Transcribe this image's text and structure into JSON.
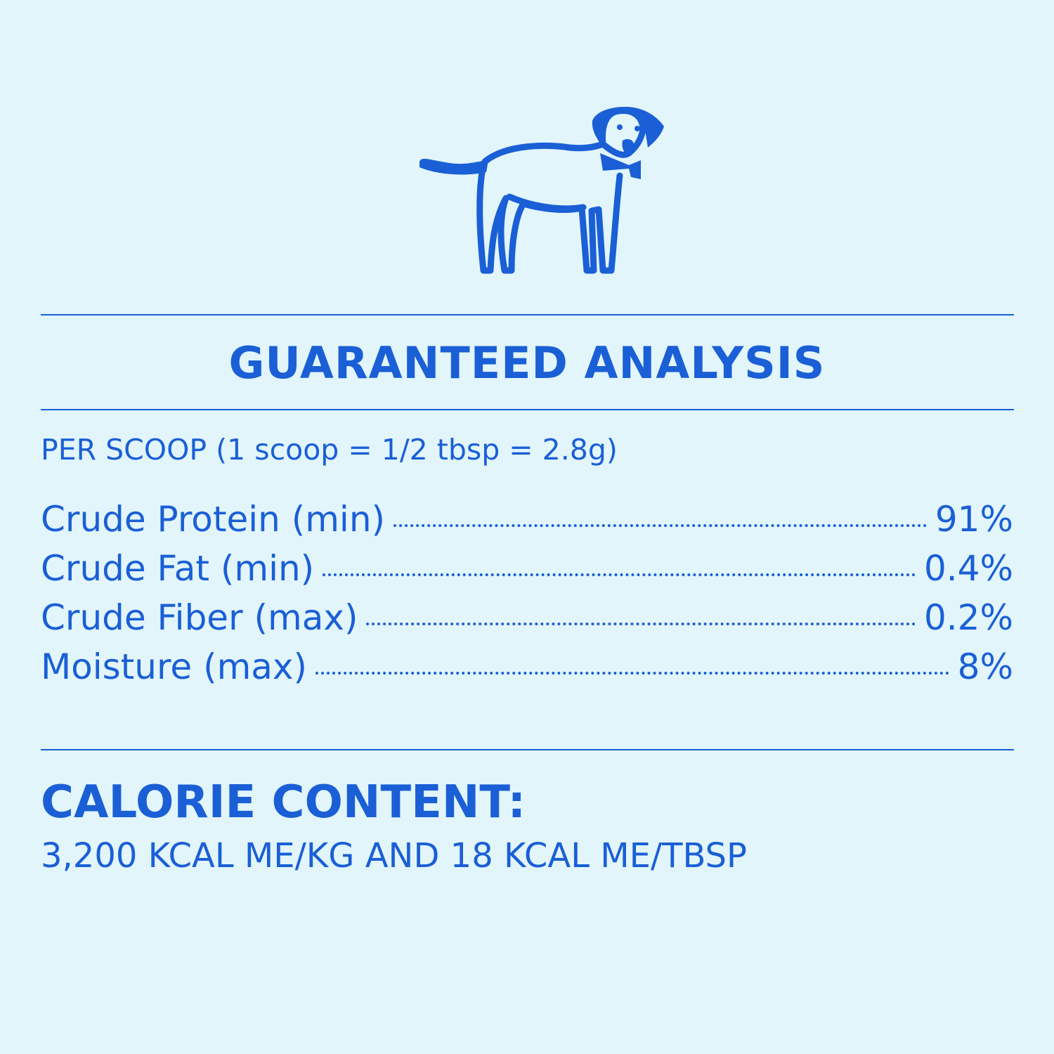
{
  "colors": {
    "brand": "#1a5fd6",
    "background": "#e2f5fb"
  },
  "illustration": "dog-with-bowtie-icon",
  "title": "GUARANTEED ANALYSIS",
  "serving": "PER SCOOP (1 scoop = 1/2 tbsp = 2.8g)",
  "rows": [
    {
      "label": "Crude Protein (min)",
      "value": "91%"
    },
    {
      "label": "Crude Fat (min)",
      "value": "0.4%"
    },
    {
      "label": "Crude Fiber (max)",
      "value": "0.2%"
    },
    {
      "label": "Moisture (max)",
      "value": "8%"
    }
  ],
  "calorie": {
    "title": "CALORIE CONTENT:",
    "value": "3,200 KCAL ME/KG AND 18 KCAL ME/TBSP"
  }
}
